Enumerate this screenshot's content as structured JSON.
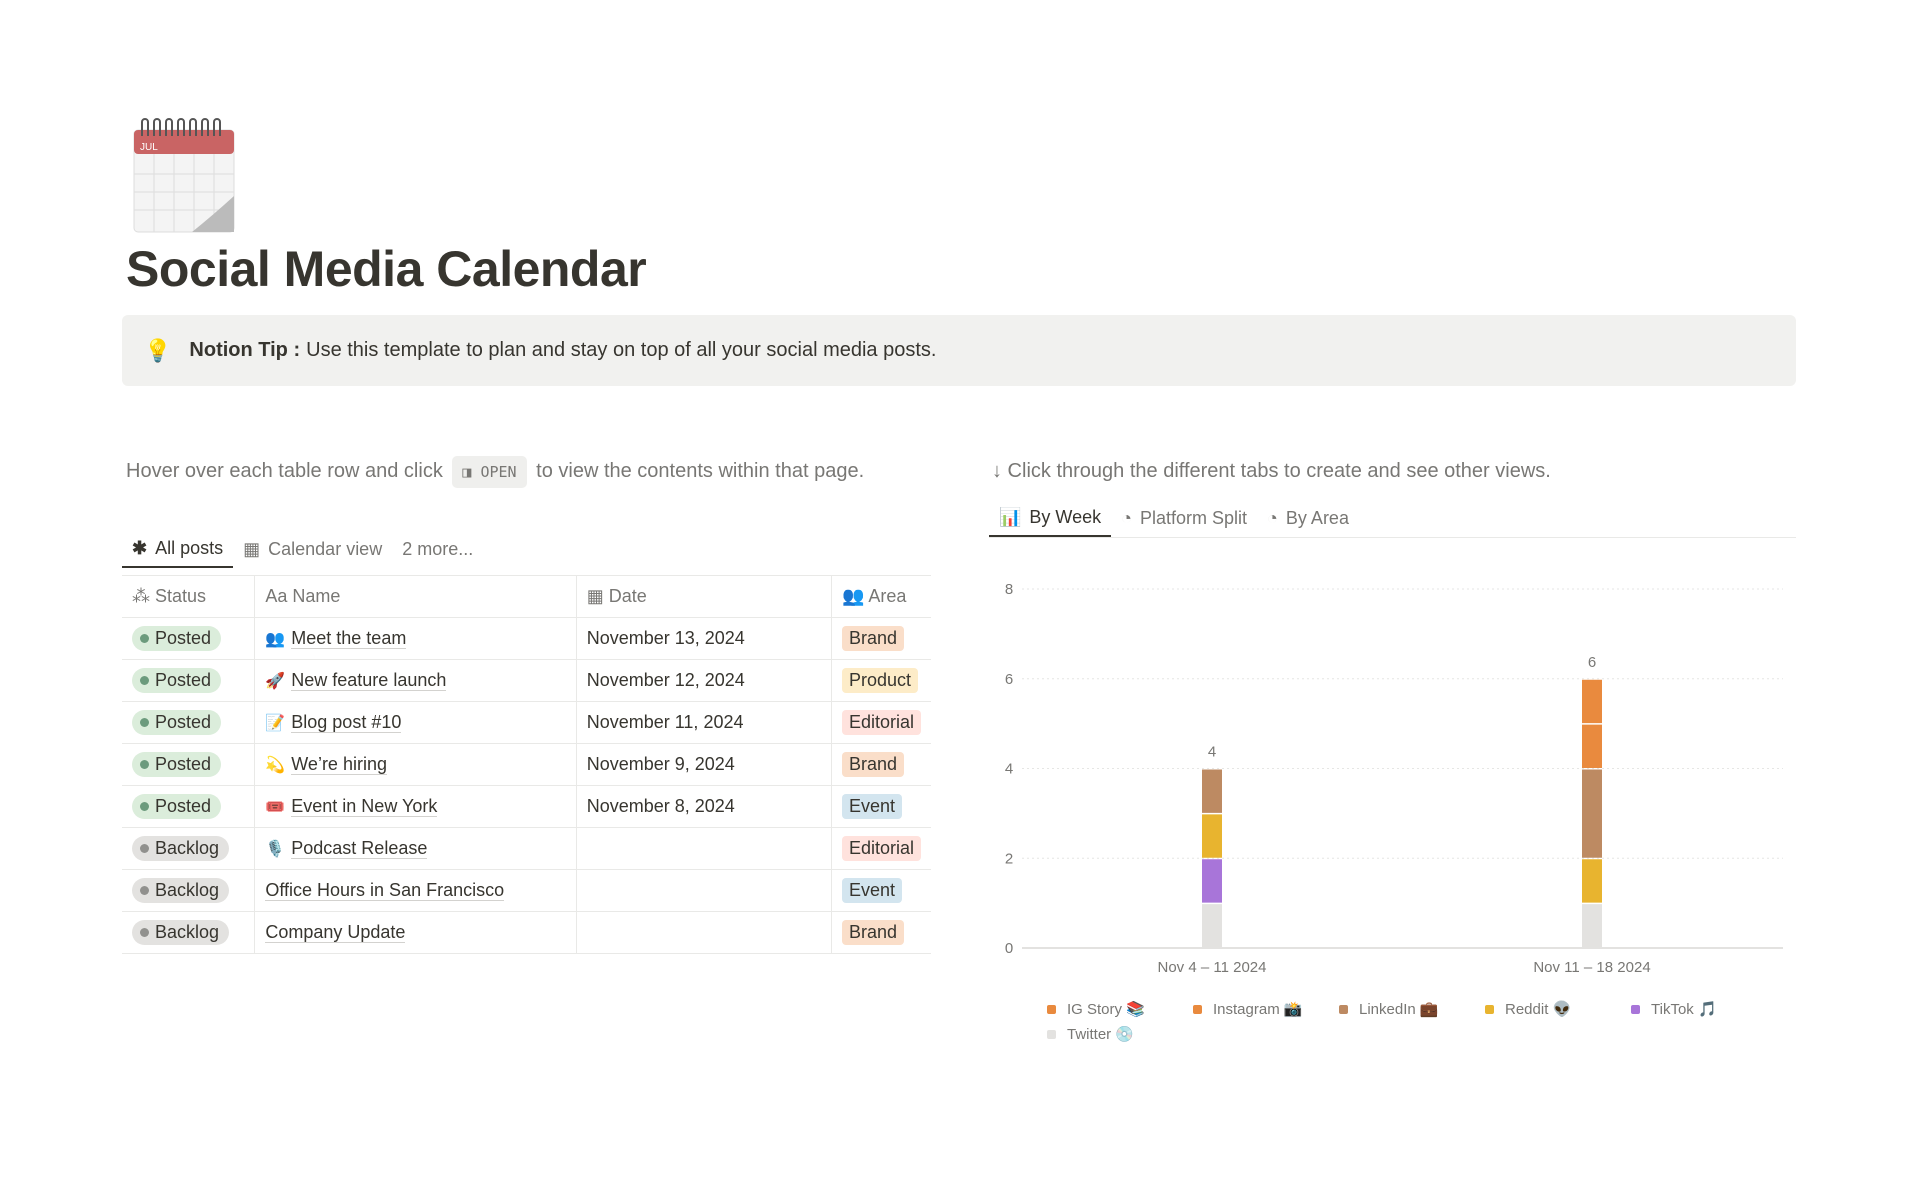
{
  "page": {
    "title": "Social Media Calendar",
    "icon": "spiral-calendar-icon",
    "icon_month": "JUL"
  },
  "callout": {
    "icon": "💡",
    "bold": "Notion Tip :",
    "text": "Use this template to plan and stay on top of all your social media posts."
  },
  "left_hint": {
    "before": "Hover over each table row and click",
    "kbd": "OPEN",
    "after": "to view the contents within that page."
  },
  "right_hint": "↓ Click through the different tabs to create and see other views.",
  "db_tabs": [
    {
      "label": "All posts",
      "icon": "✱"
    },
    {
      "label": "Calendar view",
      "icon": "▦"
    },
    {
      "label": "2 more..."
    }
  ],
  "chart_tabs": [
    {
      "label": "By Week"
    },
    {
      "label": "Platform Split"
    },
    {
      "label": "By Area"
    }
  ],
  "table": {
    "columns": [
      "Status",
      "Name",
      "Date",
      "Area"
    ],
    "rows": [
      {
        "status": "Posted",
        "emoji": "👥",
        "name": "Meet the team",
        "date": "November 13, 2024",
        "area": "Brand"
      },
      {
        "status": "Posted",
        "emoji": "🚀",
        "name": "New feature launch",
        "date": "November 12, 2024",
        "area": "Product"
      },
      {
        "status": "Posted",
        "emoji": "📝",
        "name": "Blog post #10",
        "date": "November 11, 2024",
        "area": "Editorial"
      },
      {
        "status": "Posted",
        "emoji": "💫",
        "name": "We’re hiring",
        "date": "November 9, 2024",
        "area": "Brand"
      },
      {
        "status": "Posted",
        "emoji": "🎟️",
        "name": "Event in New York",
        "date": "November 8, 2024",
        "area": "Event"
      },
      {
        "status": "Backlog",
        "emoji": "🎙️",
        "name": "Podcast Release",
        "date": "",
        "area": "Editorial"
      },
      {
        "status": "Backlog",
        "emoji": "",
        "name": "Office Hours in San Francisco",
        "date": "",
        "area": "Event"
      },
      {
        "status": "Backlog",
        "emoji": "",
        "name": "Company Update",
        "date": "",
        "area": "Brand"
      }
    ]
  },
  "colors": {
    "status": {
      "Posted": {
        "bg": "#dbeddb",
        "dot": "#6c9b7d"
      },
      "Backlog": {
        "bg": "#e3e2e0",
        "dot": "#91918e"
      }
    },
    "area": {
      "Brand": "#fadec9",
      "Product": "#fdecc8",
      "Editorial": "#ffe2dd",
      "Event": "#d3e5ef"
    }
  },
  "chart_data": {
    "type": "bar",
    "stacked": true,
    "categories": [
      "Nov 4 – 11 2024",
      "Nov 11 – 18 2024"
    ],
    "totals": [
      4,
      6
    ],
    "ylim": [
      0,
      8
    ],
    "yticks": [
      0,
      2,
      4,
      6,
      8
    ],
    "grid": true,
    "legend": "bottom",
    "series": [
      {
        "name": "Twitter 💿",
        "color": "#e3e2e0",
        "values": [
          1,
          1
        ]
      },
      {
        "name": "TikTok 🎵",
        "color": "#a875d9",
        "values": [
          1,
          0
        ]
      },
      {
        "name": "Reddit 👽",
        "color": "#e8b42f",
        "values": [
          1,
          1
        ]
      },
      {
        "name": "LinkedIn 💼",
        "color": "#bd8a62",
        "values": [
          1,
          2
        ]
      },
      {
        "name": "Instagram 📸",
        "color": "#e98a3e",
        "values": [
          0,
          1
        ]
      },
      {
        "name": "IG Story 📚",
        "color": "#e98a3e",
        "values": [
          0,
          1
        ]
      }
    ],
    "legend_order": [
      "IG Story 📚",
      "Instagram 📸",
      "LinkedIn 💼",
      "Reddit 👽",
      "TikTok 🎵",
      "Twitter 💿"
    ]
  }
}
